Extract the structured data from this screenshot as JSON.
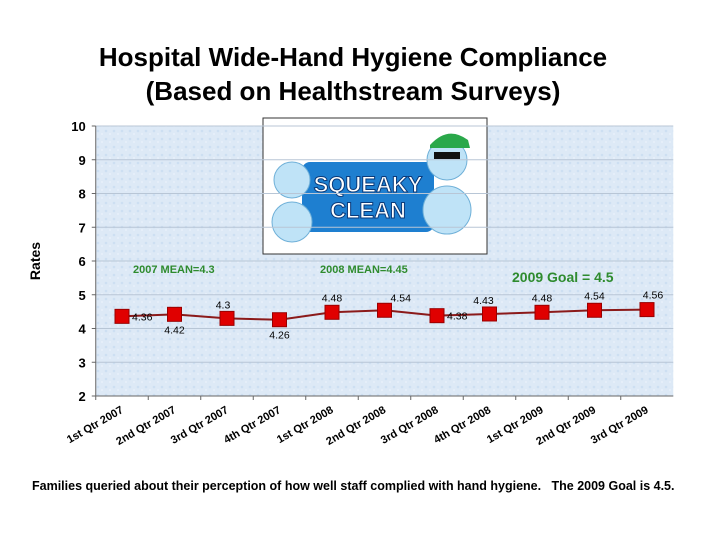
{
  "chart_data": {
    "type": "line",
    "title": "Hospital Wide-Hand Hygiene Compliance",
    "subtitle": "(Based on Healthstream Surveys)",
    "y_label": "Rates",
    "categories": [
      "1st Qtr 2007",
      "2nd Qtr 2007",
      "3rd Qtr 2007",
      "4th Qtr 2007",
      "1st Qtr 2008",
      "2nd Qtr 2008",
      "3rd Qtr 2008",
      "4th Qtr 2008",
      "1st Qtr 2009",
      "2nd Qtr 2009",
      "3rd Qtr 2009"
    ],
    "values": [
      4.36,
      4.42,
      4.3,
      4.26,
      4.48,
      4.54,
      4.38,
      4.43,
      4.48,
      4.54,
      4.56
    ],
    "color": "#e00000",
    "line_color": "#8b1a1a",
    "ylim": [
      2,
      10
    ],
    "yticks": [
      2,
      3,
      4,
      5,
      6,
      7,
      8,
      9,
      10
    ],
    "grid": true,
    "annotations": [
      "2007 MEAN=4.3",
      "2008 MEAN=4.45",
      "2009 Goal = 4.5"
    ],
    "image_text": [
      "SQUEAKY",
      "CLEAN"
    ],
    "footnote": "Families queried about their perception of how well staff complied with hand hygiene.   The 2009 Goal is 4.5."
  }
}
